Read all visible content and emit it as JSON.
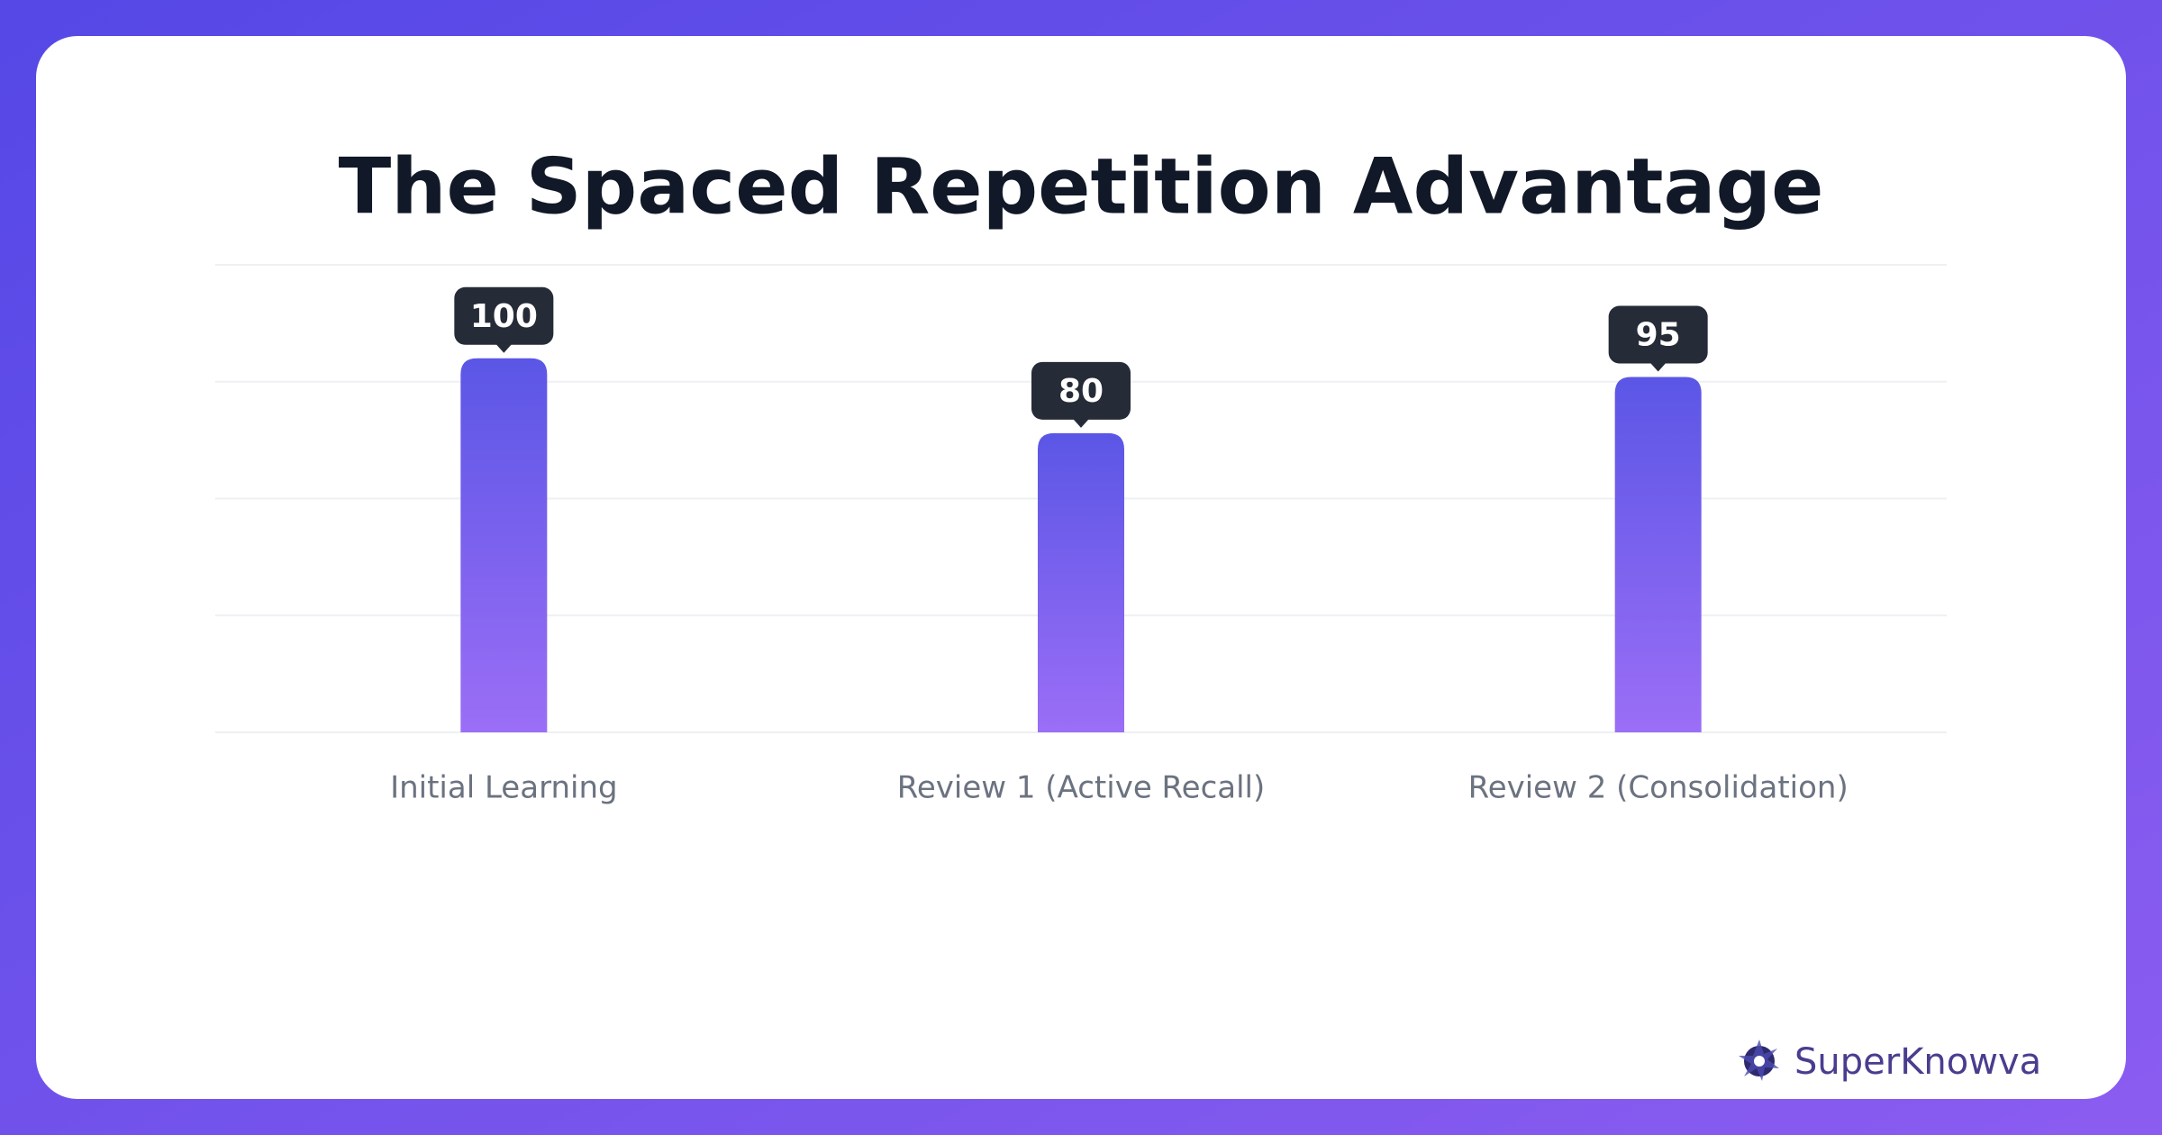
{
  "chart_data": {
    "type": "bar",
    "title": "The Spaced Repetition Advantage",
    "categories": [
      "Initial Learning",
      "Review 1 (Active Recall)",
      "Review 2 (Consolidation)"
    ],
    "values": [
      100,
      80,
      95
    ],
    "colors": [
      "#5b56e6",
      "#9b6ef6"
    ],
    "ylim": [
      0,
      125
    ],
    "yticks": [
      0,
      31.25,
      62.5,
      93.75,
      125
    ],
    "grid": true
  },
  "brand": "SuperKnowva"
}
